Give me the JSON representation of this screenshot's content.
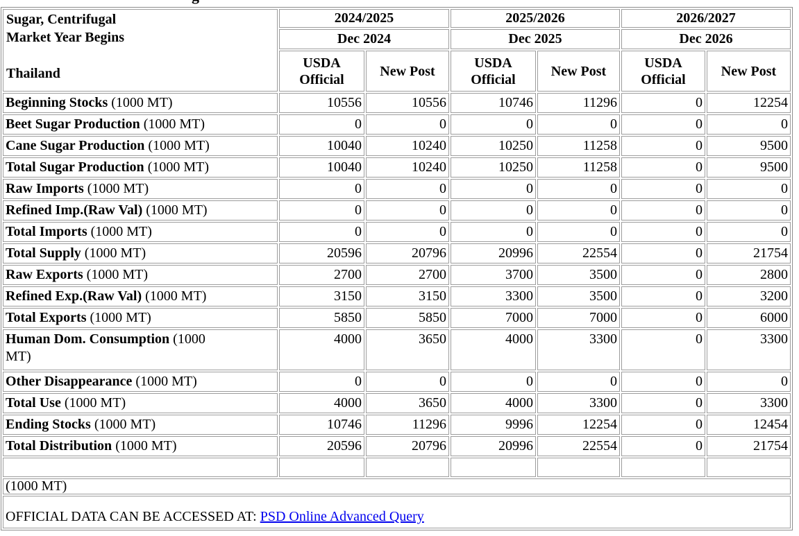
{
  "page": {
    "cropped_heading_fragment": "g"
  },
  "table": {
    "corner": [
      "Sugar, Centrifugal",
      "Market Year Begins",
      "Thailand"
    ],
    "years": [
      {
        "label": "2024/2025",
        "begins": "Dec 2024"
      },
      {
        "label": "2025/2026",
        "begins": "Dec 2025"
      },
      {
        "label": "2026/2027",
        "begins": "Dec 2026"
      }
    ],
    "col_headers": {
      "official": "USDA\nOfficial",
      "new_post": "New Post"
    },
    "rows": [
      {
        "label": "Beginning Stocks",
        "unit": "(1000 MT)",
        "values": [
          "10556",
          "10556",
          "10746",
          "11296",
          "0",
          "12254"
        ]
      },
      {
        "label": "Beet Sugar Production",
        "unit": "(1000 MT)",
        "values": [
          "0",
          "0",
          "0",
          "0",
          "0",
          "0"
        ]
      },
      {
        "label": "Cane Sugar Production",
        "unit": "(1000 MT)",
        "values": [
          "10040",
          "10240",
          "10250",
          "11258",
          "0",
          "9500"
        ]
      },
      {
        "label": "Total Sugar Production",
        "unit": "(1000 MT)",
        "values": [
          "10040",
          "10240",
          "10250",
          "11258",
          "0",
          "9500"
        ]
      },
      {
        "label": "Raw Imports",
        "unit": "(1000 MT)",
        "values": [
          "0",
          "0",
          "0",
          "0",
          "0",
          "0"
        ]
      },
      {
        "label": "Refined Imp.(Raw Val)",
        "unit": "(1000 MT)",
        "values": [
          "0",
          "0",
          "0",
          "0",
          "0",
          "0"
        ]
      },
      {
        "label": "Total Imports",
        "unit": "(1000 MT)",
        "values": [
          "0",
          "0",
          "0",
          "0",
          "0",
          "0"
        ]
      },
      {
        "label": "Total Supply",
        "unit": "(1000 MT)",
        "values": [
          "20596",
          "20796",
          "20996",
          "22554",
          "0",
          "21754"
        ]
      },
      {
        "label": "Raw Exports",
        "unit": "(1000 MT)",
        "values": [
          "2700",
          "2700",
          "3700",
          "3500",
          "0",
          "2800"
        ]
      },
      {
        "label": "Refined Exp.(Raw Val)",
        "unit": "(1000 MT)",
        "values": [
          "3150",
          "3150",
          "3300",
          "3500",
          "0",
          "3200"
        ]
      },
      {
        "label": "Total Exports",
        "unit": "(1000 MT)",
        "values": [
          "5850",
          "5850",
          "7000",
          "7000",
          "0",
          "6000"
        ]
      },
      {
        "label": "Human Dom. Consumption",
        "unit": "(1000\nMT)",
        "tall": true,
        "values": [
          "4000",
          "3650",
          "4000",
          "3300",
          "0",
          "3300"
        ]
      },
      {
        "label": "Other Disappearance",
        "unit": "(1000 MT)",
        "values": [
          "0",
          "0",
          "0",
          "0",
          "0",
          "0"
        ]
      },
      {
        "label": "Total Use",
        "unit": "(1000 MT)",
        "values": [
          "4000",
          "3650",
          "4000",
          "3300",
          "0",
          "3300"
        ]
      },
      {
        "label": "Ending Stocks",
        "unit": "(1000 MT)",
        "values": [
          "10746",
          "11296",
          "9996",
          "12254",
          "0",
          "12454"
        ]
      },
      {
        "label": "Total Distribution",
        "unit": "(1000 MT)",
        "values": [
          "20596",
          "20796",
          "20996",
          "22554",
          "0",
          "21754"
        ]
      },
      {
        "label": "",
        "unit": "",
        "empty": true,
        "values": [
          "",
          "",
          "",
          "",
          "",
          ""
        ]
      }
    ],
    "footer_unit": "(1000 MT)",
    "footer_note": "OFFICIAL DATA CAN BE ACCESSED AT: ",
    "footer_link": "PSD Online Advanced Query"
  },
  "colors": {
    "link": "#0000EE",
    "border": "#9c9c9c",
    "text": "#000000"
  }
}
